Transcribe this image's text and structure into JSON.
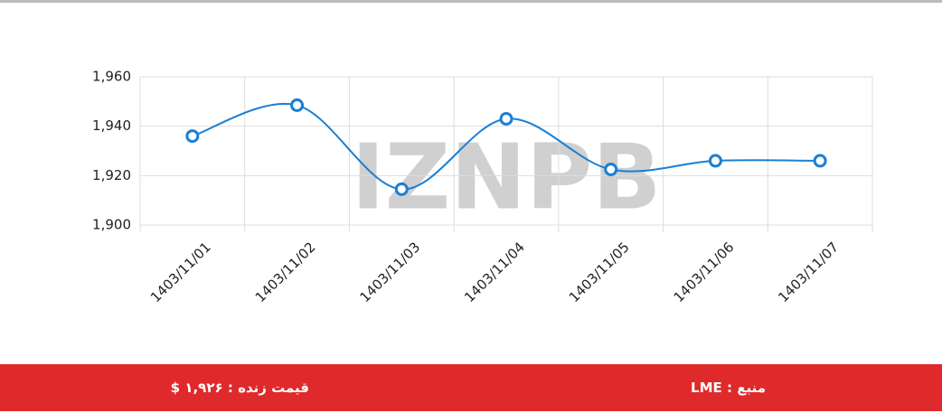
{
  "chart_data": {
    "type": "line",
    "watermark": "IZNPB",
    "categories": [
      "1403/11/01",
      "1403/11/02",
      "1403/11/03",
      "1403/11/04",
      "1403/11/05",
      "1403/11/06",
      "1403/11/07"
    ],
    "series": [
      {
        "color": "#1a7fd4",
        "values": [
          1936,
          1948.5,
          1914.5,
          1943,
          1922.5,
          1926,
          1926
        ]
      }
    ],
    "ylim": [
      1900,
      1960
    ],
    "yticks": [
      {
        "value": 1900,
        "label": "1,900"
      },
      {
        "value": 1920,
        "label": "1,920"
      },
      {
        "value": 1940,
        "label": "1,940"
      },
      {
        "value": 1960,
        "label": "1,960"
      }
    ],
    "grid": true
  },
  "footer": {
    "live_price": "قیمت زنده : ۱,۹۲۶ $",
    "source": "منبع : LME"
  }
}
